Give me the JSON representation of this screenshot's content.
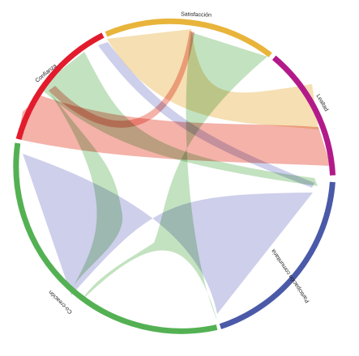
{
  "diagram": {
    "type": "chord",
    "segments": [
      {
        "id": "satisfaccion",
        "label": "Satisfacción",
        "color": "#e8b43a",
        "ribbon": "#f3d9a6"
      },
      {
        "id": "lealtad",
        "label": "Lealtad",
        "color": "#b21a8a",
        "ribbon": "#e7c7dd"
      },
      {
        "id": "participacion",
        "label": "Participación comunitaria",
        "color": "#4a5aa8",
        "ribbon": "#c4c7e8"
      },
      {
        "id": "co-creacion",
        "label": "Co-creación",
        "color": "#54b153",
        "ribbon": "#b9ddb5"
      },
      {
        "id": "confianza",
        "label": "Confianza",
        "color": "#e21b2d",
        "ribbon": "#f2a49a"
      }
    ],
    "links": [
      {
        "source": "co-creacion",
        "target": "participacion",
        "color_of": "participacion"
      },
      {
        "source": "co-creacion",
        "target": "satisfaccion",
        "color_of": "co-creacion"
      },
      {
        "source": "confianza",
        "target": "lealtad",
        "color_of": "confianza"
      },
      {
        "source": "satisfaccion",
        "target": "lealtad",
        "color_of": "satisfaccion"
      },
      {
        "source": "confianza",
        "target": "participacion",
        "color_of": "co-creacion"
      },
      {
        "source": "participacion",
        "target": "satisfaccion",
        "color_of": "participacion"
      },
      {
        "source": "confianza",
        "target": "satisfaccion",
        "color_of": "confianza"
      },
      {
        "source": "co-creacion",
        "target": "co-creacion",
        "color_of": "co-creacion"
      }
    ]
  }
}
